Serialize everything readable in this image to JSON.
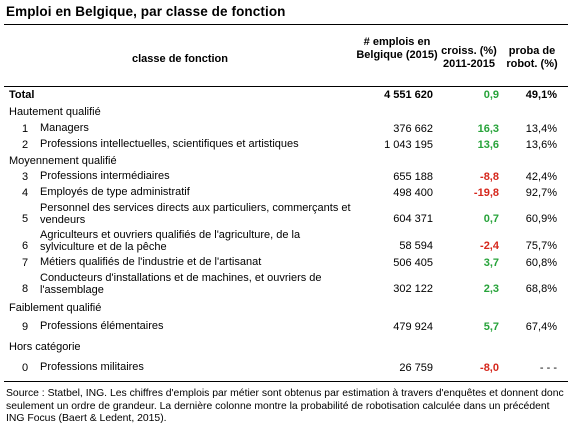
{
  "title": "Emploi en Belgique, par classe de fonction",
  "headers": {
    "classe": "classe de fonction",
    "emplois": "# emplois en Belgique (2015)",
    "croiss": "croiss. (%) 2011-2015",
    "robot": "proba de robot. (%)"
  },
  "total": {
    "label": "Total",
    "emplois": "4 551 620",
    "croiss": "0,9",
    "robot": "49,1%"
  },
  "sections": {
    "haut": "Hautement qualifié",
    "moyen": "Moyennement qualifié",
    "faible": "Faiblement qualifié",
    "hors": "Hors catégorie"
  },
  "rows": [
    {
      "num": "1",
      "label": "Managers",
      "emplois": "376 662",
      "croiss": "16,3",
      "robot": "13,4%"
    },
    {
      "num": "2",
      "label": "Professions intellectuelles, scientifiques et artistiques",
      "emplois": "1 043 195",
      "croiss": "13,6",
      "robot": "13,6%"
    },
    {
      "num": "3",
      "label": "Professions intermédiaires",
      "emplois": "655 188",
      "croiss": "-8,8",
      "robot": "42,4%"
    },
    {
      "num": "4",
      "label": "Employés de type administratif",
      "emplois": "498 400",
      "croiss": "-19,8",
      "robot": "92,7%"
    },
    {
      "num": "5",
      "label": "Personnel des services directs aux particuliers, commerçants et vendeurs",
      "emplois": "604 371",
      "croiss": "0,7",
      "robot": "60,9%"
    },
    {
      "num": "6",
      "label": "Agriculteurs et ouvriers qualifiés de l'agriculture, de la sylviculture et de la pêche",
      "emplois": "58 594",
      "croiss": "-2,4",
      "robot": "75,7%"
    },
    {
      "num": "7",
      "label": "Métiers qualifiés de l'industrie et de l'artisanat",
      "emplois": "506 405",
      "croiss": "3,7",
      "robot": "60,8%"
    },
    {
      "num": "8",
      "label": "Conducteurs d'installations et de machines, et ouvriers de l'assemblage",
      "emplois": "302 122",
      "croiss": "2,3",
      "robot": "68,8%"
    },
    {
      "num": "9",
      "label": "Professions élémentaires",
      "emplois": "479 924",
      "croiss": "5,7",
      "robot": "67,4%"
    },
    {
      "num": "0",
      "label": "Professions militaires",
      "emplois": "26 759",
      "croiss": "-8,0",
      "robot": "- - -"
    }
  ],
  "source": "Source : Statbel, ING. Les chiffres d'emplois par métier sont obtenus par estimation à travers d'enquêtes et donnent donc seulement un ordre de grandeur. La dernière colonne montre la probabilité de robotisation calculée dans un précédent ING Focus (Baert & Ledent, 2015).",
  "colors": {
    "positive": "#27a33a",
    "negative": "#d6271c"
  }
}
